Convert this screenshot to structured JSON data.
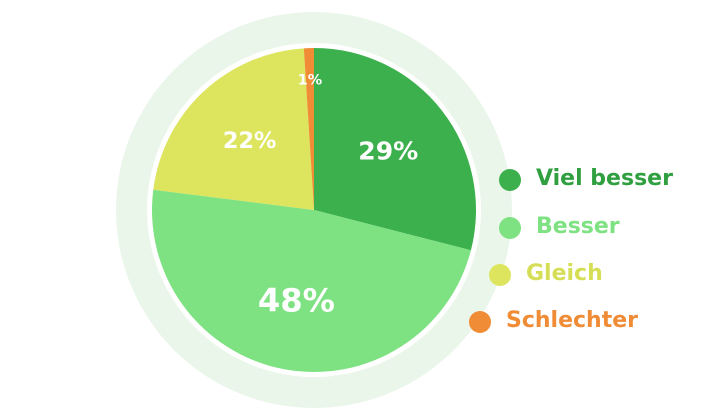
{
  "chart_data": {
    "type": "pie",
    "categories": [
      "Viel besser",
      "Besser",
      "Gleich",
      "Schlechter"
    ],
    "values": [
      29,
      48,
      22,
      1
    ],
    "value_labels": [
      "29%",
      "48%",
      "22%",
      "1%"
    ],
    "colors": [
      "#3cb04c",
      "#7ee282",
      "#dde55e",
      "#f08c36"
    ],
    "legend_colors": [
      "#2f9f3f",
      "#7ee282",
      "#d5de55",
      "#f08c36"
    ]
  }
}
